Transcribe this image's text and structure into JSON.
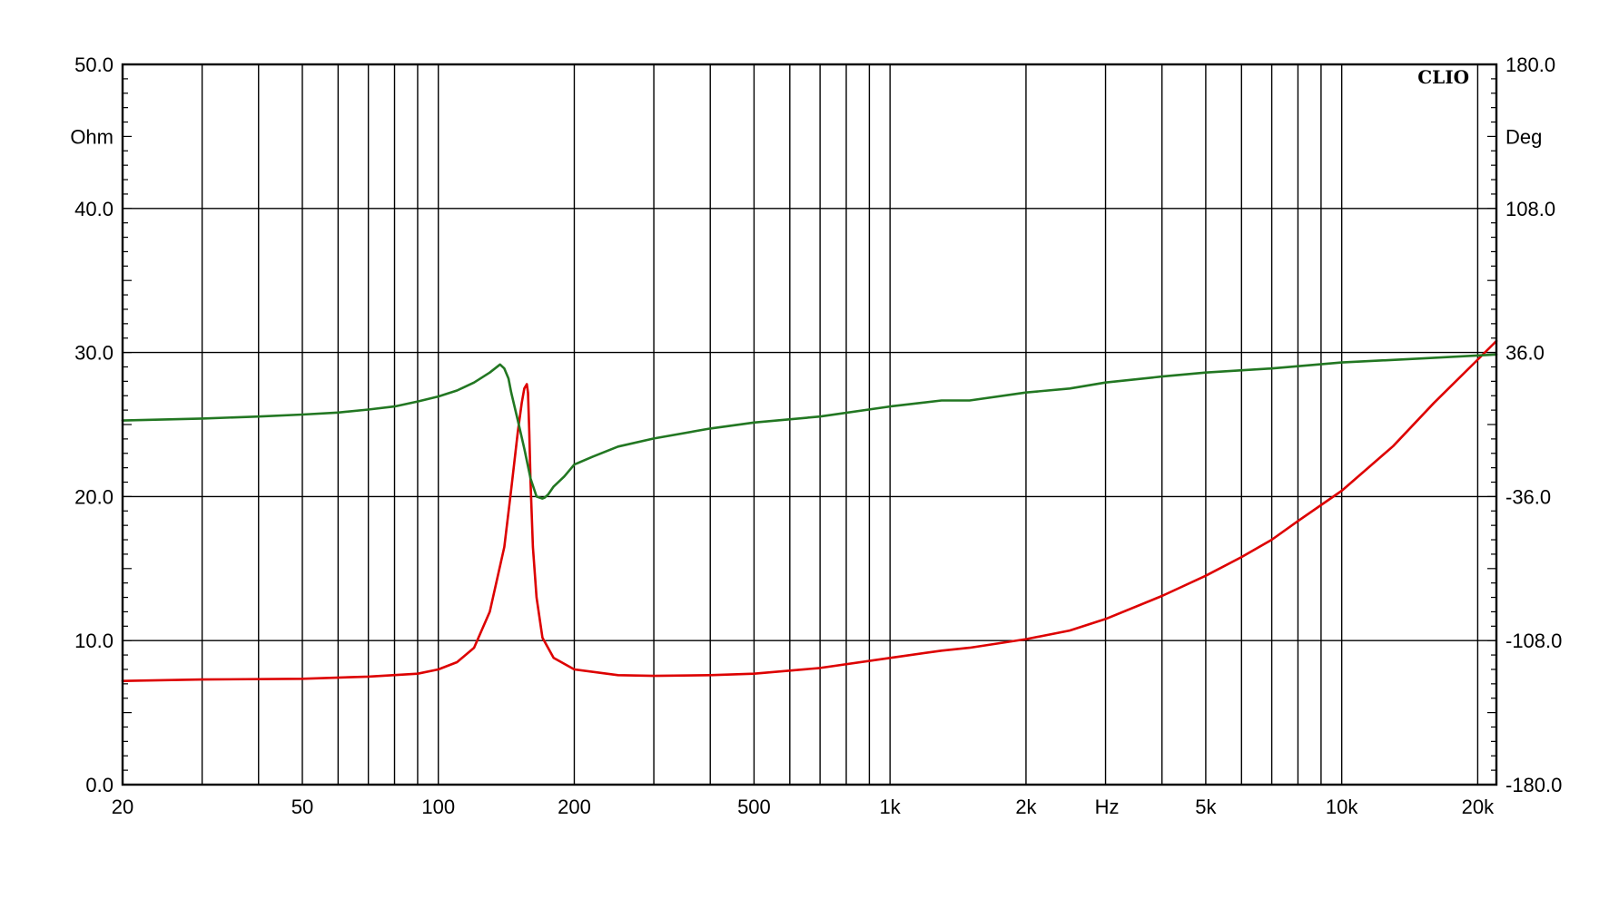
{
  "chart_data": {
    "type": "line",
    "brand": "CLIO",
    "x_scale": "log",
    "xlim": [
      20,
      22000
    ],
    "x_unit_label": "Hz",
    "x_ticks": [
      {
        "value": 20,
        "label": "20"
      },
      {
        "value": 50,
        "label": "50"
      },
      {
        "value": 100,
        "label": "100"
      },
      {
        "value": 200,
        "label": "200"
      },
      {
        "value": 500,
        "label": "500"
      },
      {
        "value": 1000,
        "label": "1k"
      },
      {
        "value": 2000,
        "label": "2k"
      },
      {
        "value": 5000,
        "label": "5k"
      },
      {
        "value": 10000,
        "label": "10k"
      },
      {
        "value": 20000,
        "label": "20k"
      }
    ],
    "x_gridlines": [
      20,
      30,
      40,
      50,
      60,
      70,
      80,
      90,
      100,
      200,
      300,
      400,
      500,
      600,
      700,
      800,
      900,
      1000,
      2000,
      3000,
      4000,
      5000,
      6000,
      7000,
      8000,
      9000,
      10000,
      20000
    ],
    "y_left": {
      "unit_label": "Ohm",
      "ylim": [
        0,
        50
      ],
      "ticks": [
        {
          "value": 0,
          "label": "0.0"
        },
        {
          "value": 10,
          "label": "10.0"
        },
        {
          "value": 20,
          "label": "20.0"
        },
        {
          "value": 30,
          "label": "30.0"
        },
        {
          "value": 40,
          "label": "40.0"
        },
        {
          "value": 50,
          "label": "50.0"
        }
      ]
    },
    "y_right": {
      "unit_label": "Deg",
      "ylim": [
        -180,
        180
      ],
      "ticks": [
        {
          "value": -180,
          "label": "-180.0"
        },
        {
          "value": -108,
          "label": "-108.0"
        },
        {
          "value": -36,
          "label": "-36.0"
        },
        {
          "value": 36,
          "label": "36.0"
        },
        {
          "value": 108,
          "label": "108.0"
        },
        {
          "value": 180,
          "label": "180.0"
        }
      ]
    },
    "grid": true,
    "series": [
      {
        "axis": "left",
        "color": "#dd0000",
        "x": [
          20,
          30,
          50,
          70,
          90,
          100,
          110,
          120,
          130,
          140,
          145,
          150,
          153,
          155,
          157,
          158,
          159,
          160,
          162,
          165,
          170,
          180,
          200,
          250,
          300,
          400,
          500,
          700,
          1000,
          1300,
          1500,
          2000,
          2500,
          3000,
          4000,
          5000,
          6000,
          7000,
          8000,
          10000,
          13000,
          16000,
          20000,
          22000
        ],
        "y": [
          7.2,
          7.3,
          7.35,
          7.5,
          7.7,
          8.0,
          8.5,
          9.5,
          12.0,
          16.5,
          20.5,
          24.5,
          26.5,
          27.5,
          27.8,
          27.2,
          24.5,
          21.0,
          16.5,
          13.0,
          10.2,
          8.8,
          8.0,
          7.6,
          7.55,
          7.6,
          7.7,
          8.1,
          8.8,
          9.3,
          9.5,
          10.1,
          10.7,
          11.5,
          13.1,
          14.5,
          15.8,
          17.0,
          18.3,
          20.4,
          23.5,
          26.5,
          29.5,
          30.8
        ]
      },
      {
        "axis": "right",
        "color": "#227722",
        "x": [
          20,
          30,
          40,
          50,
          60,
          70,
          80,
          90,
          100,
          110,
          120,
          130,
          137,
          140,
          143,
          145,
          150,
          155,
          160,
          165,
          170,
          172,
          175,
          180,
          190,
          200,
          220,
          250,
          300,
          400,
          500,
          700,
          1000,
          1300,
          1500,
          2000,
          2500,
          3000,
          4000,
          5000,
          7000,
          10000,
          15000,
          22000
        ],
        "y": [
          2,
          3,
          4,
          5,
          6,
          7.5,
          9,
          11.5,
          14,
          17,
          21,
          26,
          30,
          28,
          23,
          16,
          2,
          -12,
          -27,
          -36,
          -37,
          -36.5,
          -35,
          -31,
          -26,
          -20,
          -16,
          -11,
          -7,
          -2,
          1,
          4,
          9,
          12,
          12,
          16,
          18,
          21,
          24,
          26,
          28,
          31,
          33,
          35
        ]
      }
    ]
  }
}
